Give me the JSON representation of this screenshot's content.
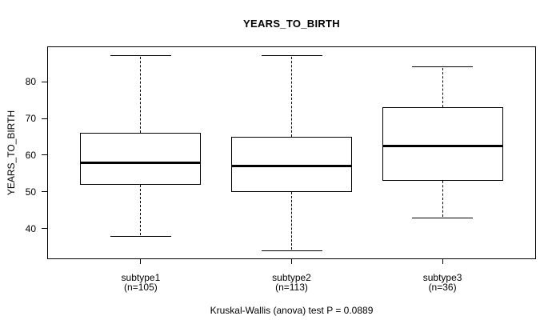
{
  "title": "YEARS_TO_BIRTH",
  "footer": "Kruskal-Wallis (anova) test P = 0.0889",
  "colors": {
    "line": "#000000",
    "background": "#ffffff",
    "box_fill": "#ffffff"
  },
  "chart_data": {
    "type": "boxplot",
    "title": "YEARS_TO_BIRTH",
    "ylabel": "YEARS_TO_BIRTH",
    "xlabel": "",
    "ylim": [
      31.7,
      89.6
    ],
    "yticks": [
      40,
      50,
      60,
      70,
      80
    ],
    "grid": false,
    "legend": "none",
    "annotation": "Kruskal-Wallis (anova) test P = 0.0889",
    "groups": [
      {
        "label": "subtype1",
        "sublabel": "(n=105)",
        "n": 105,
        "whisker_low": 38,
        "q1": 52,
        "median": 58,
        "q3": 66,
        "whisker_high": 87
      },
      {
        "label": "subtype2",
        "sublabel": "(n=113)",
        "n": 113,
        "whisker_low": 34,
        "q1": 50,
        "median": 57,
        "q3": 65,
        "whisker_high": 87
      },
      {
        "label": "subtype3",
        "sublabel": "(n=36)",
        "n": 36,
        "whisker_low": 43,
        "q1": 53,
        "median": 62.5,
        "q3": 73,
        "whisker_high": 84
      }
    ]
  }
}
